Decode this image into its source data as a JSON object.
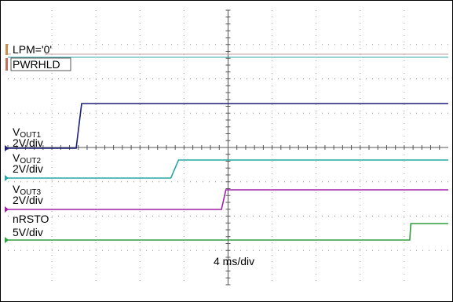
{
  "chart_data": {
    "type": "line",
    "title": "",
    "xlabel": "4 ms/div",
    "x_unit": "ms",
    "x_per_div": 4,
    "x_divisions": 10,
    "xlim": [
      0,
      40
    ],
    "grid": true,
    "series": [
      {
        "label": "LPM='0'",
        "color": "#c9a5a5",
        "x": [
          0,
          40
        ],
        "y": [
          1,
          1
        ]
      },
      {
        "label": "PWRHLD",
        "color": "#3aa8a8",
        "x": [
          0,
          40
        ],
        "y": [
          1,
          1
        ]
      },
      {
        "label_main": "V",
        "label_sub": "OUT1",
        "scale": "2V/div",
        "color": "#1b1f7a",
        "x": [
          0,
          6.2,
          6.7,
          40
        ],
        "y": [
          0,
          0,
          1,
          1
        ]
      },
      {
        "label_main": "V",
        "label_sub": "OUT2",
        "scale": "2V/div",
        "color": "#27a6a6",
        "x": [
          0,
          14.8,
          15.5,
          40
        ],
        "y": [
          0,
          0,
          1,
          1
        ]
      },
      {
        "label_main": "V",
        "label_sub": "OUT3",
        "scale": "2V/div",
        "color": "#a020a8",
        "x": [
          0,
          19.4,
          19.8,
          40
        ],
        "y": [
          0,
          0,
          1,
          1
        ]
      },
      {
        "label": "nRSTO",
        "scale": "5V/div",
        "color": "#2e9e3e",
        "x": [
          0,
          36.5,
          36.6,
          40
        ],
        "y": [
          0,
          0,
          1,
          1
        ]
      }
    ]
  }
}
